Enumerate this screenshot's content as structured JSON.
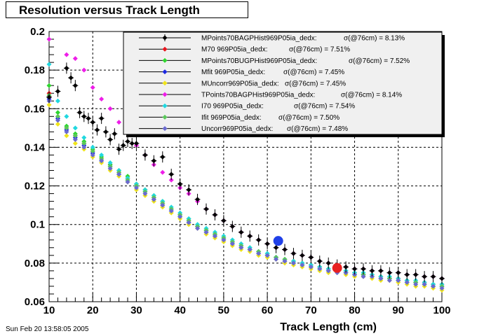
{
  "title": "Resolution versus Track Length",
  "footer": "Sun Feb 20 13:58:05 2005",
  "chart_data": {
    "type": "scatter",
    "title": "Resolution versus Track Length",
    "xlabel": "Track Length (cm)",
    "ylabel": "",
    "xlim": [
      10,
      100
    ],
    "ylim": [
      0.06,
      0.2
    ],
    "x_ticks": [
      "10",
      "20",
      "30",
      "40",
      "50",
      "60",
      "70",
      "80",
      "90",
      "100"
    ],
    "y_ticks": [
      "0.06",
      "0.08",
      "0.1",
      "0.12",
      "0.14",
      "0.16",
      "0.18",
      "0.2"
    ],
    "grid": true,
    "legend_position": "top-right",
    "series": [
      {
        "name": "MPoints70BAGPHist969P05ia_dedx:",
        "sigma": "σ(@76cm) =  8.13%",
        "color": "#000000",
        "error_bars": true,
        "x": [
          10,
          12,
          14,
          15,
          16,
          17,
          18,
          19,
          20,
          21,
          22,
          23,
          24,
          25,
          26,
          27,
          28,
          29,
          30,
          32,
          34,
          36,
          38,
          40,
          42,
          44,
          46,
          48,
          50,
          52,
          54,
          56,
          58,
          60,
          62,
          64,
          66,
          68,
          70,
          72,
          74,
          76,
          78,
          80,
          82,
          84,
          86,
          88,
          90,
          92,
          94,
          96,
          98,
          100
        ],
        "y": [
          0.166,
          0.169,
          0.181,
          0.176,
          0.172,
          0.158,
          0.156,
          0.155,
          0.153,
          0.149,
          0.155,
          0.148,
          0.144,
          0.147,
          0.139,
          0.141,
          0.143,
          0.142,
          0.142,
          0.136,
          0.133,
          0.135,
          0.126,
          0.121,
          0.118,
          0.113,
          0.108,
          0.105,
          0.102,
          0.099,
          0.096,
          0.094,
          0.092,
          0.09,
          0.088,
          0.087,
          0.085,
          0.084,
          0.083,
          0.081,
          0.08,
          0.079,
          0.078,
          0.077,
          0.077,
          0.076,
          0.076,
          0.075,
          0.075,
          0.074,
          0.074,
          0.073,
          0.073,
          0.072
        ]
      },
      {
        "name": "M70   969P05ia_dedx:",
        "sigma": "σ(@76cm) = 7.51%",
        "color": "#e8141c",
        "error_bars": false,
        "x": [
          10,
          12,
          14,
          16,
          18,
          20,
          22,
          24,
          26,
          28,
          30,
          32,
          34,
          36,
          38,
          40,
          42,
          44,
          46,
          48,
          50,
          52,
          54,
          56,
          58,
          60,
          62,
          64,
          66,
          68,
          70,
          72,
          74,
          76,
          78,
          80,
          82,
          84,
          86,
          88,
          90,
          92,
          94,
          96,
          98,
          100
        ],
        "y": [
          0.168,
          0.156,
          0.15,
          0.146,
          0.142,
          0.138,
          0.134,
          0.131,
          0.127,
          0.124,
          0.121,
          0.118,
          0.114,
          0.111,
          0.108,
          0.105,
          0.102,
          0.099,
          0.097,
          0.095,
          0.093,
          0.091,
          0.089,
          0.087,
          0.086,
          0.084,
          0.083,
          0.082,
          0.081,
          0.08,
          0.079,
          0.078,
          0.077,
          0.077,
          0.076,
          0.075,
          0.074,
          0.074,
          0.073,
          0.072,
          0.072,
          0.071,
          0.07,
          0.07,
          0.069,
          0.069
        ]
      },
      {
        "name": "MPoints70BUGPHist969P05ia_dedx:",
        "sigma": "σ(@76cm) = 7.52%",
        "color": "#2ed62e",
        "error_bars": false,
        "x": [
          10,
          12,
          14,
          16,
          18,
          20,
          22,
          24,
          26,
          28,
          30,
          32,
          34,
          36,
          38,
          40,
          42,
          44,
          46,
          48,
          50,
          52,
          54,
          56,
          58,
          60,
          62,
          64,
          66,
          68,
          70,
          72,
          74,
          76,
          78,
          80,
          82,
          84,
          86,
          88,
          90,
          92,
          94,
          96,
          98,
          100
        ],
        "y": [
          0.172,
          0.158,
          0.151,
          0.147,
          0.143,
          0.139,
          0.135,
          0.131,
          0.128,
          0.125,
          0.121,
          0.118,
          0.115,
          0.112,
          0.108,
          0.105,
          0.103,
          0.1,
          0.097,
          0.095,
          0.093,
          0.091,
          0.089,
          0.088,
          0.086,
          0.085,
          0.083,
          0.082,
          0.081,
          0.08,
          0.079,
          0.078,
          0.077,
          0.076,
          0.076,
          0.075,
          0.074,
          0.074,
          0.073,
          0.072,
          0.071,
          0.071,
          0.07,
          0.069,
          0.069,
          0.068
        ]
      },
      {
        "name": "Mfit  969P05ia_dedx:",
        "sigma": "σ(@76cm) = 7.45%",
        "color": "#1c28e0",
        "error_bars": false,
        "x": [
          10,
          12,
          14,
          16,
          18,
          20,
          22,
          24,
          26,
          28,
          30,
          32,
          34,
          36,
          38,
          40,
          42,
          44,
          46,
          48,
          50,
          52,
          54,
          56,
          58,
          60,
          62,
          64,
          66,
          68,
          70,
          72,
          74,
          76,
          78,
          80,
          82,
          84,
          86,
          88,
          90,
          92,
          94,
          96,
          98,
          100
        ],
        "y": [
          0.165,
          0.155,
          0.149,
          0.145,
          0.141,
          0.137,
          0.133,
          0.13,
          0.126,
          0.123,
          0.12,
          0.117,
          0.113,
          0.11,
          0.107,
          0.104,
          0.101,
          0.099,
          0.096,
          0.094,
          0.092,
          0.09,
          0.088,
          0.087,
          0.085,
          0.084,
          0.083,
          0.081,
          0.08,
          0.079,
          0.078,
          0.077,
          0.076,
          0.076,
          0.075,
          0.074,
          0.074,
          0.073,
          0.072,
          0.072,
          0.071,
          0.07,
          0.07,
          0.069,
          0.068,
          0.068
        ]
      },
      {
        "name": "MUncorr969P05ia_dedx:",
        "sigma": "σ(@76cm) = 7.45%",
        "color": "#f0e41a",
        "error_bars": false,
        "x": [
          10,
          12,
          14,
          16,
          18,
          20,
          22,
          24,
          26,
          28,
          30,
          32,
          34,
          36,
          38,
          40,
          42,
          44,
          46,
          48,
          50,
          52,
          54,
          56,
          58,
          60,
          62,
          64,
          66,
          68,
          70,
          72,
          74,
          76,
          78,
          80,
          82,
          84,
          86,
          88,
          90,
          92,
          94,
          96,
          98,
          100
        ],
        "y": [
          0.162,
          0.152,
          0.146,
          0.142,
          0.139,
          0.135,
          0.132,
          0.128,
          0.125,
          0.122,
          0.118,
          0.115,
          0.112,
          0.109,
          0.106,
          0.103,
          0.1,
          0.098,
          0.095,
          0.093,
          0.091,
          0.089,
          0.087,
          0.086,
          0.084,
          0.083,
          0.082,
          0.08,
          0.079,
          0.078,
          0.077,
          0.076,
          0.075,
          0.075,
          0.074,
          0.073,
          0.073,
          0.072,
          0.071,
          0.071,
          0.07,
          0.069,
          0.068,
          0.068,
          0.067,
          0.066
        ]
      },
      {
        "name": "TPoints70BAGPHist969P05ia_dedx:",
        "sigma": "σ(@76cm) = 8.14%",
        "color": "#ee1ee8",
        "error_bars": false,
        "x": [
          10,
          14,
          16,
          18,
          20,
          22,
          24,
          26,
          28,
          30,
          32,
          34,
          36,
          38,
          40,
          42,
          44,
          46,
          48,
          50,
          52,
          54,
          56,
          58,
          60,
          62,
          64,
          66,
          68,
          70,
          72,
          74,
          76,
          78,
          80,
          82,
          84,
          86,
          88,
          90,
          92,
          94,
          96,
          98,
          100
        ],
        "y": [
          0.196,
          0.188,
          0.186,
          0.18,
          0.171,
          0.165,
          0.16,
          0.153,
          0.147,
          0.141,
          0.136,
          0.131,
          0.127,
          0.123,
          0.119,
          0.116,
          0.112,
          0.108,
          0.105,
          0.102,
          0.099,
          0.096,
          0.094,
          0.092,
          0.09,
          0.088,
          0.087,
          0.085,
          0.084,
          0.083,
          0.081,
          0.08,
          0.079,
          0.078,
          0.077,
          0.077,
          0.076,
          0.076,
          0.075,
          0.075,
          0.074,
          0.074,
          0.073,
          0.073,
          0.072
        ]
      },
      {
        "name": "I70   969P05ia_dedx:",
        "sigma": "σ(@76cm) = 7.54%",
        "color": "#20d8e0",
        "error_bars": false,
        "x": [
          10,
          12,
          14,
          16,
          18,
          20,
          22,
          24,
          26,
          28,
          30,
          32,
          34,
          36,
          38,
          40,
          42,
          44,
          46,
          48,
          50,
          52,
          54,
          56,
          58,
          60,
          62,
          64,
          66,
          68,
          70,
          72,
          74,
          76,
          78,
          80,
          82,
          84,
          86,
          88,
          90,
          92,
          94,
          96,
          98,
          100
        ],
        "y": [
          0.183,
          0.164,
          0.156,
          0.15,
          0.145,
          0.14,
          0.136,
          0.132,
          0.128,
          0.124,
          0.121,
          0.118,
          0.115,
          0.112,
          0.109,
          0.106,
          0.103,
          0.1,
          0.098,
          0.096,
          0.094,
          0.092,
          0.09,
          0.088,
          0.086,
          0.085,
          0.083,
          0.082,
          0.081,
          0.08,
          0.079,
          0.078,
          0.077,
          0.077,
          0.076,
          0.075,
          0.075,
          0.074,
          0.073,
          0.073,
          0.072,
          0.071,
          0.071,
          0.07,
          0.069,
          0.069
        ]
      },
      {
        "name": "Ifit  969P05ia_dedx:",
        "sigma": "σ(@76cm) = 7.50%",
        "color": "#5ac85a",
        "error_bars": false,
        "x": [
          10,
          12,
          14,
          16,
          18,
          20,
          22,
          24,
          26,
          28,
          30,
          32,
          34,
          36,
          38,
          40,
          42,
          44,
          46,
          48,
          50,
          52,
          54,
          56,
          58,
          60,
          62,
          64,
          66,
          68,
          70,
          72,
          74,
          76,
          78,
          80,
          82,
          84,
          86,
          88,
          90,
          92,
          94,
          96,
          98,
          100
        ],
        "y": [
          0.167,
          0.156,
          0.15,
          0.146,
          0.142,
          0.138,
          0.134,
          0.13,
          0.127,
          0.123,
          0.12,
          0.117,
          0.114,
          0.111,
          0.108,
          0.105,
          0.102,
          0.099,
          0.097,
          0.095,
          0.093,
          0.091,
          0.089,
          0.087,
          0.086,
          0.084,
          0.083,
          0.082,
          0.08,
          0.079,
          0.078,
          0.077,
          0.076,
          0.076,
          0.075,
          0.074,
          0.074,
          0.073,
          0.072,
          0.072,
          0.071,
          0.07,
          0.07,
          0.069,
          0.068,
          0.068
        ]
      },
      {
        "name": "Uncorr969P05ia_dedx:",
        "sigma": "σ(@76cm) = 7.48%",
        "color": "#6a6ad0",
        "error_bars": false,
        "x": [
          10,
          12,
          14,
          16,
          18,
          20,
          22,
          24,
          26,
          28,
          30,
          32,
          34,
          36,
          38,
          40,
          42,
          44,
          46,
          48,
          50,
          52,
          54,
          56,
          58,
          60,
          62,
          64,
          66,
          68,
          70,
          72,
          74,
          76,
          78,
          80,
          82,
          84,
          86,
          88,
          90,
          92,
          94,
          96,
          98,
          100
        ],
        "y": [
          0.164,
          0.154,
          0.148,
          0.144,
          0.14,
          0.136,
          0.133,
          0.129,
          0.126,
          0.122,
          0.119,
          0.116,
          0.113,
          0.11,
          0.107,
          0.104,
          0.101,
          0.098,
          0.096,
          0.094,
          0.092,
          0.09,
          0.088,
          0.087,
          0.085,
          0.084,
          0.082,
          0.081,
          0.08,
          0.079,
          0.078,
          0.077,
          0.076,
          0.075,
          0.075,
          0.074,
          0.073,
          0.073,
          0.072,
          0.071,
          0.071,
          0.07,
          0.069,
          0.069,
          0.068,
          0.067
        ]
      }
    ],
    "highlight_points": [
      {
        "x": 62.5,
        "y": 0.0915,
        "color": "#2040e8"
      },
      {
        "x": 76,
        "y": 0.0775,
        "color": "#e82020"
      }
    ]
  }
}
